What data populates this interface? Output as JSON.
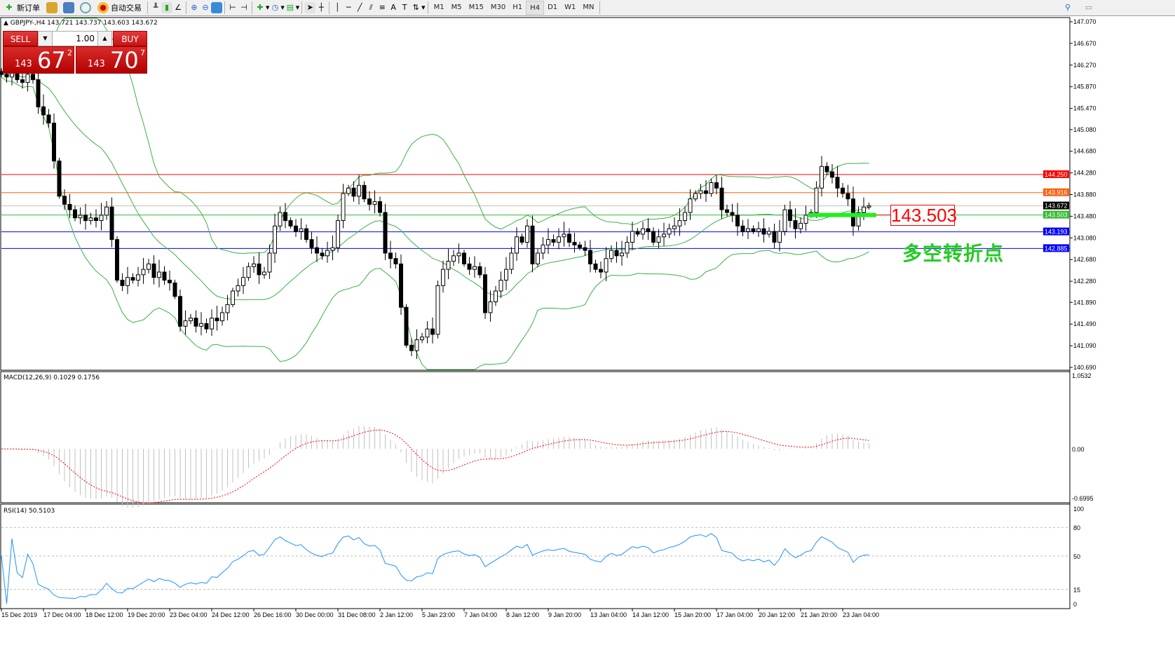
{
  "toolbar": {
    "new_order": "新订单",
    "auto_trading": "自动交易",
    "timeframes": [
      "M1",
      "M5",
      "M15",
      "M30",
      "H1",
      "H4",
      "D1",
      "W1",
      "MN"
    ],
    "active_timeframe": "H4"
  },
  "chart_header": {
    "symbol": "GBPJPY-,H4",
    "open": "143.721",
    "high": "143.737",
    "low": "143.603",
    "close": "143.672"
  },
  "one_click": {
    "sell": "SELL",
    "buy": "BUY",
    "lot": "1.00",
    "sell_price": {
      "big": "143",
      "main": "67",
      "pip": "2"
    },
    "buy_price": {
      "big": "143",
      "main": "70",
      "pip": "7"
    }
  },
  "annotation": {
    "price_box": "143.503",
    "note": "多空转折点",
    "note_color": "#22cc22"
  },
  "chart_data": {
    "type": "candlestick",
    "price_axis": {
      "min": 140.69,
      "max": 147.07,
      "ticks": [
        "147.070",
        "146.670",
        "146.270",
        "145.870",
        "145.470",
        "145.080",
        "144.680",
        "144.280",
        "143.880",
        "143.480",
        "143.080",
        "142.680",
        "142.280",
        "141.890",
        "141.490",
        "141.090",
        "140.690"
      ]
    },
    "levels": [
      {
        "price": "144.250",
        "color": "#ff0000"
      },
      {
        "price": "143.916",
        "color": "#ff6010"
      },
      {
        "price": "143.672",
        "color": "#000000",
        "line": "#c0c0c0"
      },
      {
        "price": "143.503",
        "color": "#33bb33"
      },
      {
        "price": "143.193",
        "color": "#0000ff"
      },
      {
        "price": "142.885",
        "color": "#0000ff"
      }
    ],
    "time_labels": [
      "15 Dec 2019",
      "17 Dec 04:00",
      "18 Dec 12:00",
      "19 Dec 20:00",
      "23 Dec 04:00",
      "24 Dec 12:00",
      "26 Dec 16:00",
      "30 Dec 00:00",
      "31 Dec 08:00",
      "2 Jan 12:00",
      "5 Jan 23:00",
      "7 Jan 04:00",
      "8 Jan 12:00",
      "9 Jan 20:00",
      "13 Jan 04:00",
      "14 Jan 12:00",
      "15 Jan 20:00",
      "17 Jan 04:00",
      "20 Jan 12:00",
      "21 Jan 20:00",
      "23 Jan 04:00"
    ],
    "close": [
      146.1,
      146.05,
      146.15,
      146.0,
      145.95,
      146.1,
      146.0,
      145.5,
      145.35,
      145.2,
      144.5,
      143.85,
      143.7,
      143.6,
      143.45,
      143.5,
      143.4,
      143.45,
      143.4,
      143.5,
      143.65,
      143.05,
      142.3,
      142.2,
      142.35,
      142.3,
      142.4,
      142.5,
      142.6,
      142.35,
      142.45,
      142.3,
      142.25,
      142.0,
      141.45,
      141.55,
      141.6,
      141.45,
      141.5,
      141.4,
      141.6,
      141.55,
      141.7,
      141.85,
      142.1,
      142.2,
      142.35,
      142.55,
      142.6,
      142.4,
      142.45,
      142.8,
      143.3,
      143.55,
      143.4,
      143.3,
      143.2,
      143.25,
      143.05,
      142.9,
      142.8,
      142.75,
      142.85,
      142.9,
      143.4,
      143.9,
      144.0,
      143.85,
      144.05,
      143.8,
      143.7,
      143.75,
      143.55,
      142.8,
      142.7,
      142.6,
      141.8,
      141.1,
      141.0,
      141.2,
      141.25,
      141.4,
      141.3,
      142.2,
      142.5,
      142.65,
      142.75,
      142.8,
      142.6,
      142.5,
      142.55,
      142.4,
      141.7,
      141.9,
      142.1,
      142.3,
      142.5,
      142.8,
      143.1,
      143.0,
      143.3,
      142.6,
      142.8,
      142.95,
      143.05,
      143.0,
      143.1,
      143.15,
      143.0,
      142.95,
      142.9,
      142.85,
      142.6,
      142.5,
      142.45,
      142.7,
      142.85,
      142.75,
      142.8,
      143.0,
      143.2,
      143.15,
      143.25,
      143.2,
      143.0,
      143.1,
      143.15,
      143.25,
      143.3,
      143.4,
      143.55,
      143.8,
      143.9,
      143.95,
      143.9,
      144.1,
      144.0,
      143.6,
      143.55,
      143.5,
      143.3,
      143.2,
      143.25,
      143.2,
      143.25,
      143.15,
      143.2,
      143.0,
      143.2,
      143.6,
      143.4,
      143.25,
      143.35,
      143.5,
      143.55,
      144.0,
      144.4,
      144.3,
      144.2,
      144.0,
      143.9,
      143.8,
      143.3,
      143.55,
      143.65,
      143.672
    ],
    "indicators": {
      "bollinger_color": "#3cb043",
      "macd": {
        "label": "MACD(12,26,9) 0.1029 0.1756",
        "max": "1.0532",
        "zero": "0.00",
        "min": "-0.6995",
        "signal_color": "#ff0000",
        "hist_color": "#c0c0c0"
      },
      "rsi": {
        "label": "RSI(14) 50.5103",
        "ticks": [
          "100",
          "80",
          "50",
          "15",
          "0"
        ],
        "color": "#1e90ff"
      }
    }
  }
}
